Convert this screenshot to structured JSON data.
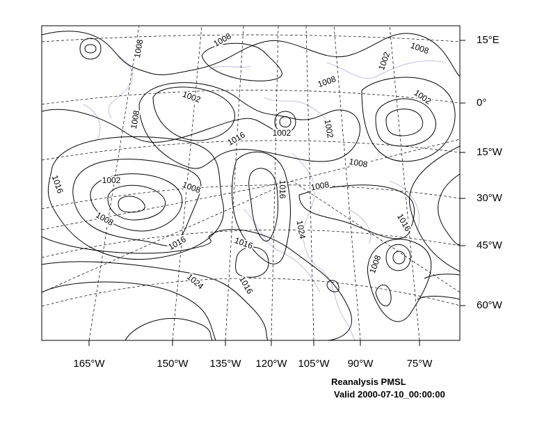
{
  "map": {
    "x_labels": [
      "165°W",
      "150°W",
      "135°W",
      "120°W",
      "105°W",
      "90°W",
      "75°W"
    ],
    "y_labels": [
      "15°E",
      "0°",
      "15°W",
      "30°W",
      "45°W",
      "60°W"
    ],
    "contour_labels": [
      "1008",
      "1008",
      "1008",
      "1002",
      "1008",
      "1002",
      "1002",
      "1008",
      "1002",
      "1002",
      "1016",
      "1008",
      "1016",
      "1002",
      "1008",
      "1008",
      "1016",
      "1008",
      "1024",
      "1016",
      "1016",
      "1016",
      "1008",
      "1024",
      "1016"
    ],
    "caption": {
      "title": "Reanalysis PMSL",
      "valid": "Valid 2000-07-10_00:00:00"
    }
  }
}
